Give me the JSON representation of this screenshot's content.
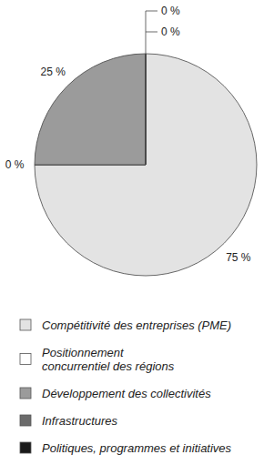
{
  "chart_data": {
    "type": "pie",
    "categories": [
      "Compétitivité des entreprises (PME)",
      "Positionnement concurrentiel des régions",
      "Développement des collectivités",
      "Infrastructures",
      "Politiques, programmes et initiatives"
    ],
    "values": [
      75,
      0,
      25,
      0,
      0
    ],
    "value_labels": [
      "75 %",
      "0 %",
      "25 %",
      "0 %",
      "0 %"
    ],
    "colors": [
      "#e3e3e3",
      "#ffffff",
      "#9b9b9b",
      "#6b6b6b",
      "#1a1a1a"
    ],
    "data_labels": true,
    "legend": "bottom"
  }
}
